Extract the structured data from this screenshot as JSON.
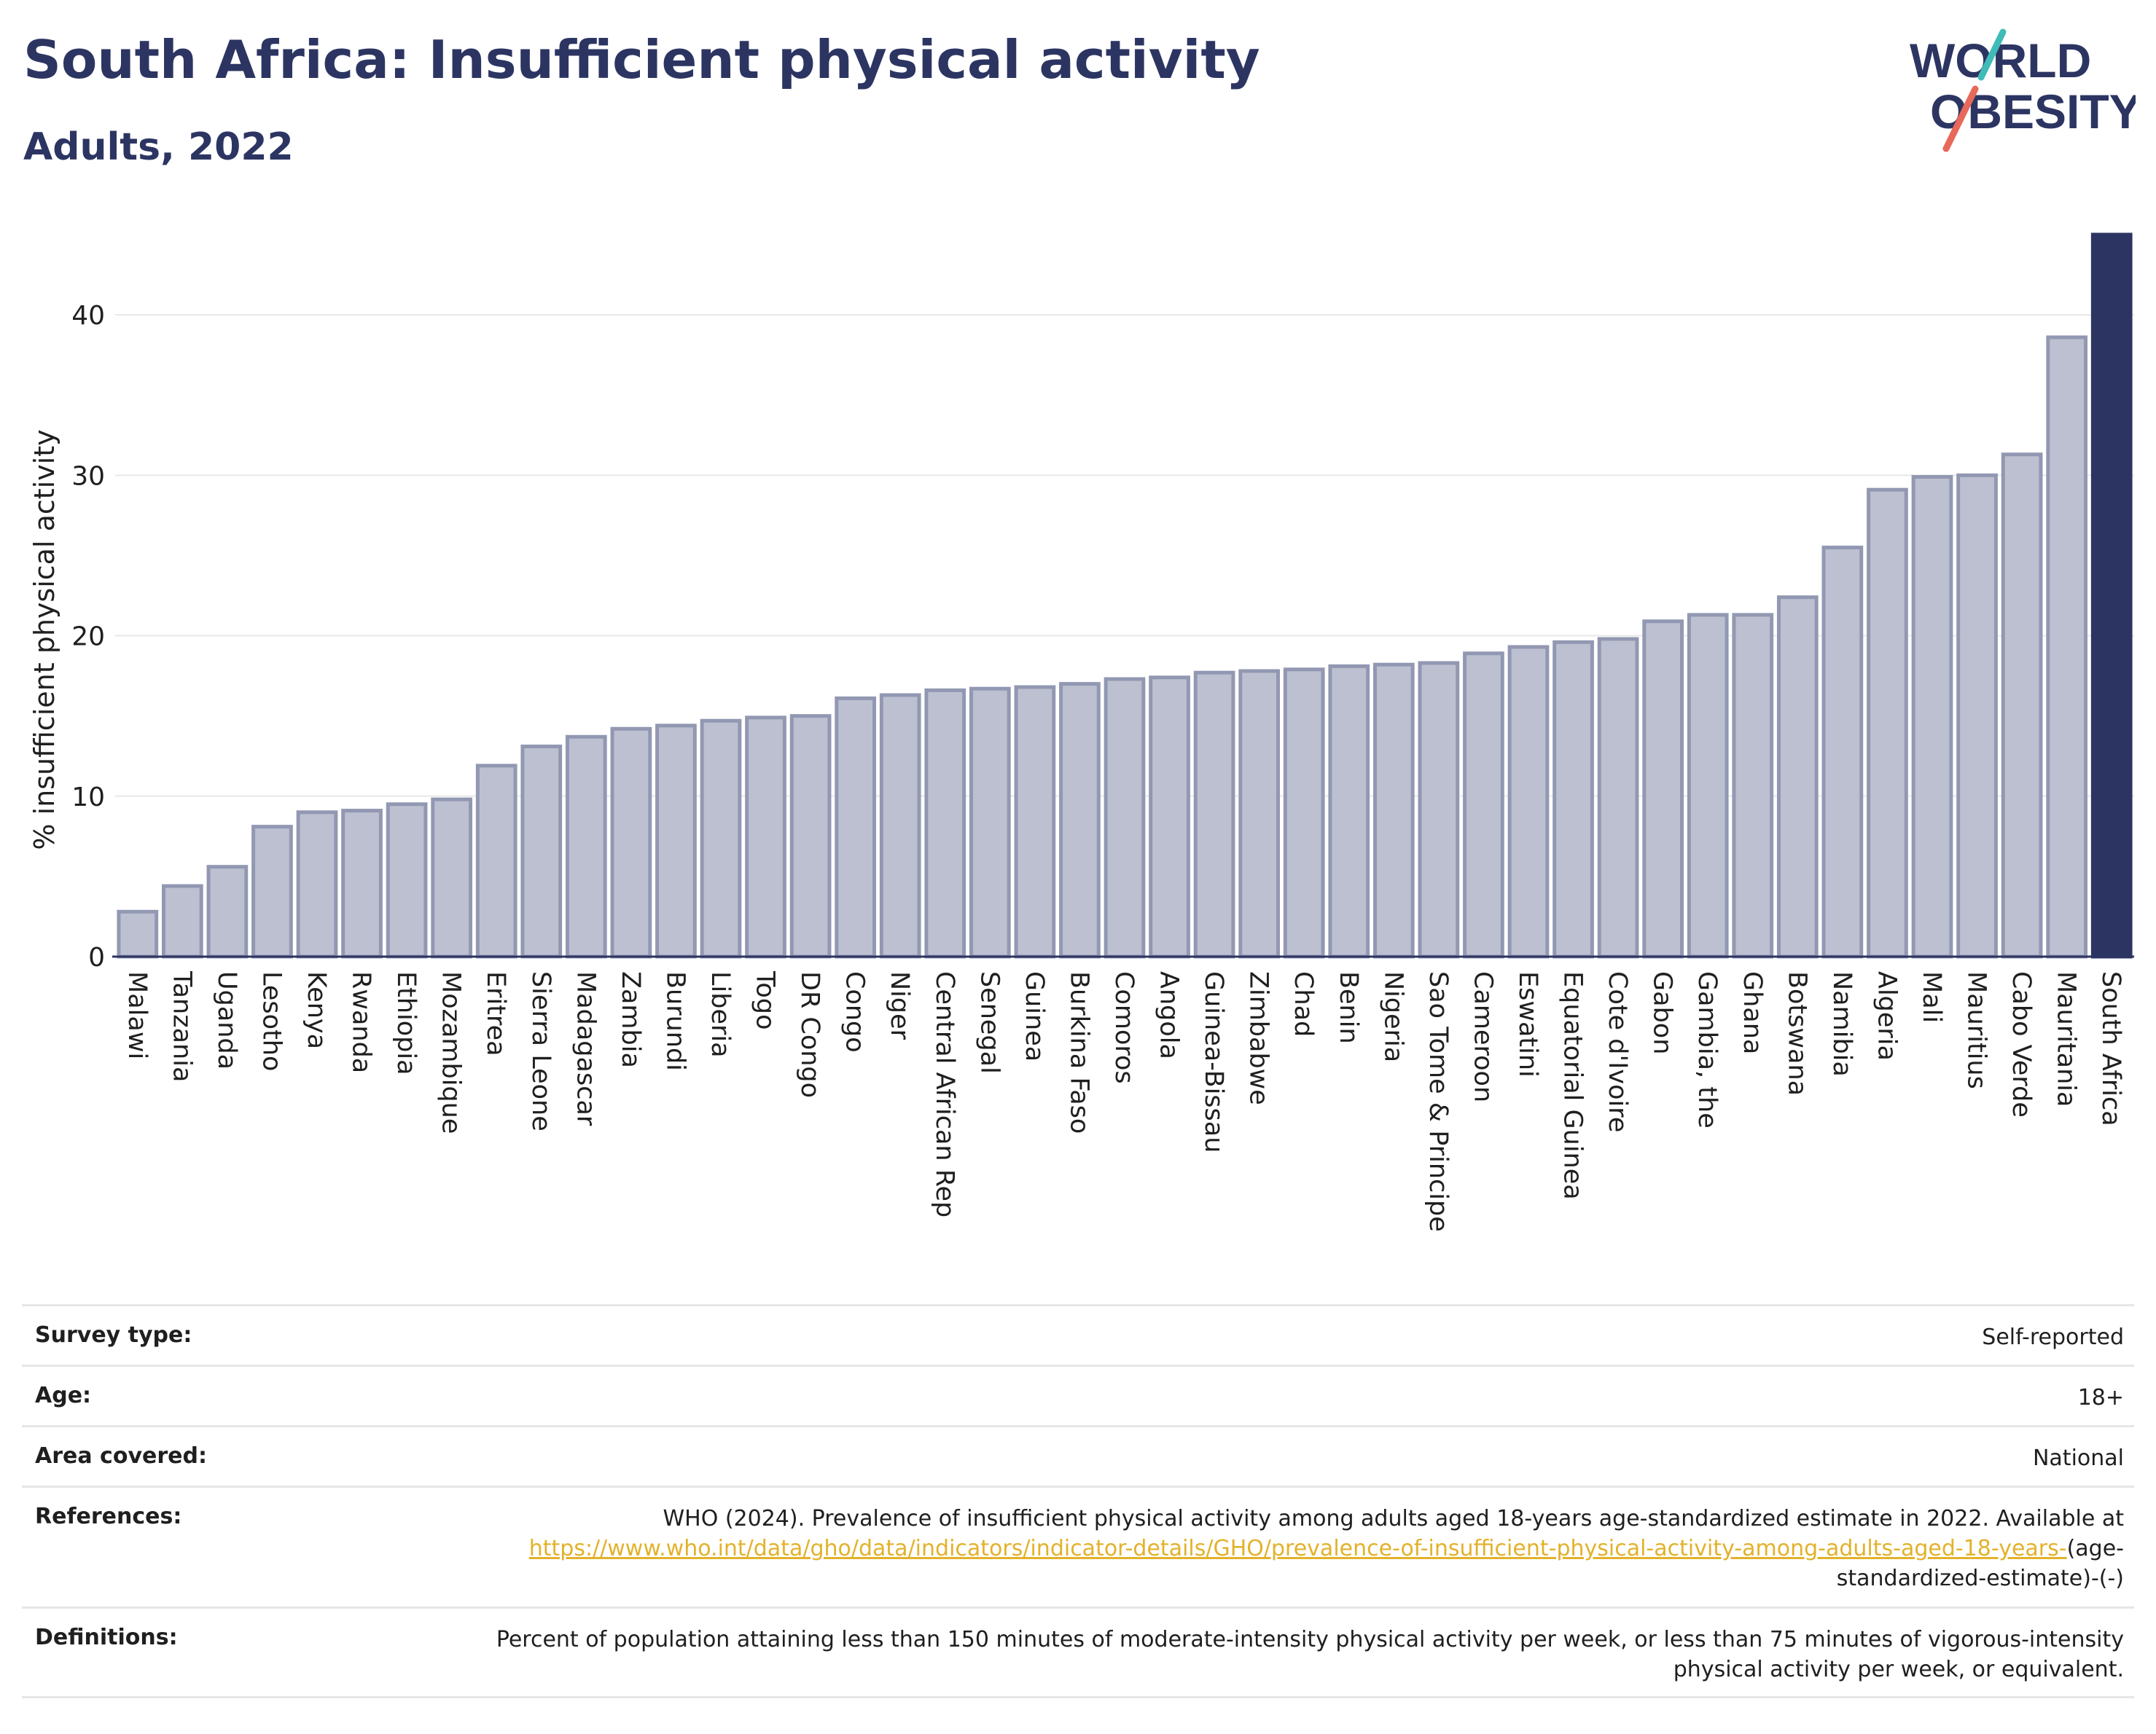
{
  "title": "South Africa: Insufficient physical activity",
  "subtitle": "Adults, 2022",
  "logo": {
    "line1": "WORLD",
    "line2": "OBESITY",
    "brand_color": "#2c3562",
    "accent_red": "#e8685a",
    "accent_teal": "#3fbcb8"
  },
  "colors": {
    "bar": "#bcc0d0",
    "bar_stroke": "#9298b2",
    "highlight": "#2c3562",
    "grid": "#e8e8e8",
    "axis": "#2c3562"
  },
  "chart_data": {
    "type": "bar",
    "ylabel": "% insufficient physical activity",
    "ylim": [
      0,
      45
    ],
    "yticks": [
      0,
      10,
      20,
      30,
      40
    ],
    "grid": true,
    "highlight_category": "South Africa",
    "categories": [
      "Malawi",
      "Tanzania",
      "Uganda",
      "Lesotho",
      "Kenya",
      "Rwanda",
      "Ethiopia",
      "Mozambique",
      "Eritrea",
      "Sierra Leone",
      "Madagascar",
      "Zambia",
      "Burundi",
      "Liberia",
      "Togo",
      "DR Congo",
      "Congo",
      "Niger",
      "Central African Rep",
      "Senegal",
      "Guinea",
      "Burkina Faso",
      "Comoros",
      "Angola",
      "Guinea-Bissau",
      "Zimbabwe",
      "Chad",
      "Benin",
      "Nigeria",
      "Sao Tome & Principe",
      "Cameroon",
      "Eswatini",
      "Equatorial Guinea",
      "Cote d'Ivoire",
      "Gabon",
      "Gambia, the",
      "Ghana",
      "Botswana",
      "Namibia",
      "Algeria",
      "Mali",
      "Mauritius",
      "Cabo Verde",
      "Mauritania",
      "South Africa"
    ],
    "values": [
      2.8,
      4.4,
      5.6,
      8.1,
      9.0,
      9.1,
      9.5,
      9.8,
      11.9,
      13.1,
      13.7,
      14.2,
      14.4,
      14.7,
      14.9,
      15.0,
      16.1,
      16.3,
      16.6,
      16.7,
      16.8,
      17.0,
      17.3,
      17.4,
      17.7,
      17.8,
      17.9,
      18.1,
      18.2,
      18.3,
      18.9,
      19.3,
      19.6,
      19.8,
      20.9,
      21.3,
      21.3,
      22.4,
      25.5,
      29.1,
      29.9,
      30.0,
      31.3,
      38.6,
      45.0
    ]
  },
  "meta": {
    "survey_type_label": "Survey type:",
    "survey_type_value": "Self-reported",
    "age_label": "Age:",
    "age_value": "18+",
    "area_label": "Area covered:",
    "area_value": "National",
    "references_label": "References:",
    "references_text": "WHO (2024). Prevalence of insufficient physical activity among adults aged 18-years age-standardized estimate in 2022. Available at",
    "references_link": "https://www.who.int/data/gho/data/indicators/indicator-details/GHO/prevalence-of-insufficient-physical-activity-among-adults-aged-18-years-",
    "references_suffix": "(age-standardized-estimate)-(-)",
    "definitions_label": "Definitions:",
    "definitions_text": "Percent of population attaining less than 150 minutes of moderate-intensity physical activity per week, or less than 75 minutes of vigorous-intensity physical activity per week, or equivalent."
  }
}
